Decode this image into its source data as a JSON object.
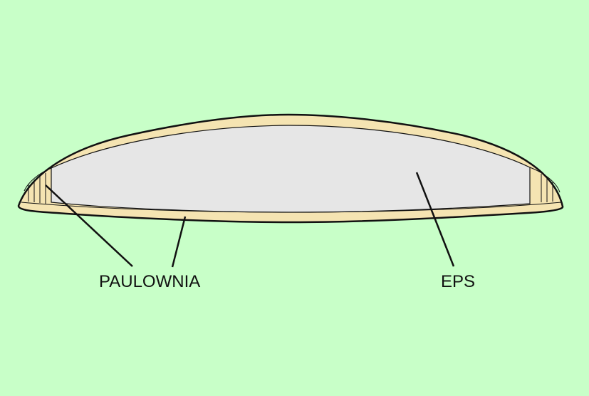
{
  "labels": {
    "paulownia": "PAULOWNIA",
    "eps": "EPS"
  },
  "colors": {
    "background": "#c8ffc8",
    "wood": "#f5e4b2",
    "core": "#e6e6e6",
    "outline": "#111111"
  }
}
